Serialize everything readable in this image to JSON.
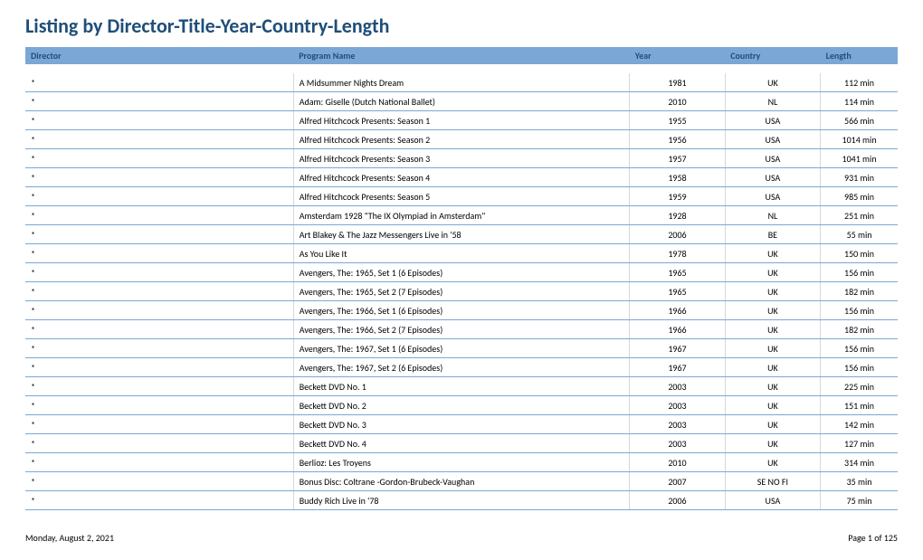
{
  "title": "Listing by Director-Title-Year-Country-Length",
  "columns": [
    "Director",
    "Program Name",
    "Year",
    "Country",
    "Length"
  ],
  "rows": [
    {
      "director": "*",
      "program": "A Midsummer Nights Dream",
      "year": "1981",
      "country": "UK",
      "length": "112 min"
    },
    {
      "director": "*",
      "program": "Adam: Giselle (Dutch National Ballet)",
      "year": "2010",
      "country": "NL",
      "length": "114 min"
    },
    {
      "director": "*",
      "program": "Alfred Hitchcock Presents: Season 1",
      "year": "1955",
      "country": "USA",
      "length": "566 min"
    },
    {
      "director": "*",
      "program": "Alfred Hitchcock Presents: Season 2",
      "year": "1956",
      "country": "USA",
      "length": "1014 min"
    },
    {
      "director": "*",
      "program": "Alfred Hitchcock Presents: Season 3",
      "year": "1957",
      "country": "USA",
      "length": "1041 min"
    },
    {
      "director": "*",
      "program": "Alfred Hitchcock Presents: Season 4",
      "year": "1958",
      "country": "USA",
      "length": "931 min"
    },
    {
      "director": "*",
      "program": "Alfred Hitchcock Presents: Season 5",
      "year": "1959",
      "country": "USA",
      "length": "985 min"
    },
    {
      "director": "*",
      "program": "Amsterdam 1928 \"The IX Olympiad in Amsterdam\"",
      "year": "1928",
      "country": "NL",
      "length": "251 min"
    },
    {
      "director": "*",
      "program": "Art Blakey & The Jazz Messengers Live in '58",
      "year": "2006",
      "country": "BE",
      "length": "55 min"
    },
    {
      "director": "*",
      "program": "As You Like It",
      "year": "1978",
      "country": "UK",
      "length": "150 min"
    },
    {
      "director": "*",
      "program": "Avengers, The: 1965, Set 1 (6 Episodes)",
      "year": "1965",
      "country": "UK",
      "length": "156 min"
    },
    {
      "director": "*",
      "program": "Avengers, The: 1965, Set 2 (7 Episodes)",
      "year": "1965",
      "country": "UK",
      "length": "182 min"
    },
    {
      "director": "*",
      "program": "Avengers, The: 1966, Set 1 (6 Episodes)",
      "year": "1966",
      "country": "UK",
      "length": "156 min"
    },
    {
      "director": "*",
      "program": "Avengers, The: 1966, Set 2 (7 Episodes)",
      "year": "1966",
      "country": "UK",
      "length": "182 min"
    },
    {
      "director": "*",
      "program": "Avengers, The: 1967, Set 1 (6 Episodes)",
      "year": "1967",
      "country": "UK",
      "length": "156 min"
    },
    {
      "director": "*",
      "program": "Avengers, The: 1967, Set 2 (6 Episodes)",
      "year": "1967",
      "country": "UK",
      "length": "156 min"
    },
    {
      "director": "*",
      "program": "Beckett DVD No. 1",
      "year": "2003",
      "country": "UK",
      "length": "225 min"
    },
    {
      "director": "*",
      "program": "Beckett DVD No. 2",
      "year": "2003",
      "country": "UK",
      "length": "151 min"
    },
    {
      "director": "*",
      "program": "Beckett DVD No. 3",
      "year": "2003",
      "country": "UK",
      "length": "142 min"
    },
    {
      "director": "*",
      "program": "Beckett DVD No. 4",
      "year": "2003",
      "country": "UK",
      "length": "127 min"
    },
    {
      "director": "*",
      "program": "Berlioz: Les Troyens",
      "year": "2010",
      "country": "UK",
      "length": "314 min"
    },
    {
      "director": "*",
      "program": "Bonus Disc: Coltrane -Gordon-Brubeck-Vaughan",
      "year": "2007",
      "country": "SE NO FI",
      "length": "35 min"
    },
    {
      "director": "*",
      "program": "Buddy Rich Live in '78",
      "year": "2006",
      "country": "USA",
      "length": "75 min"
    }
  ],
  "footer": {
    "date": "Monday, August 2, 2021",
    "page": "Page 1 of 125"
  }
}
